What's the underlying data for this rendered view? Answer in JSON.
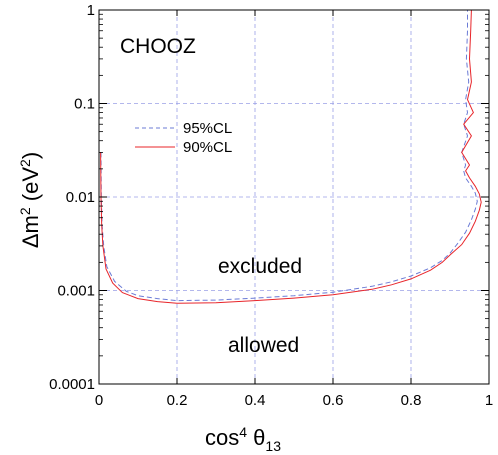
{
  "chart_data": {
    "type": "line",
    "title": "",
    "xlabel": "cos⁴ θ₁₃",
    "ylabel": "Δm² (eV²)",
    "xlim": [
      0,
      1
    ],
    "ylim": [
      0.0001,
      1
    ],
    "yscale": "log",
    "grid": true,
    "xticks": [
      "0",
      "0.2",
      "0.4",
      "0.6",
      "0.8",
      "1"
    ],
    "yticks": [
      "0.0001",
      "0.001",
      "0.01",
      "0.1",
      "1"
    ],
    "legend_position": "upper-left",
    "annotations": {
      "experiment": "CHOOZ",
      "excluded": "excluded",
      "allowed": "allowed"
    },
    "series": [
      {
        "name": "95%CL",
        "color": "#6b7bd6",
        "style": "dashed",
        "x": [
          0.005,
          0.006,
          0.008,
          0.012,
          0.02,
          0.04,
          0.07,
          0.1,
          0.15,
          0.2,
          0.3,
          0.4,
          0.5,
          0.6,
          0.7,
          0.75,
          0.8,
          0.85,
          0.88,
          0.9,
          0.92,
          0.94,
          0.955,
          0.965,
          0.97,
          0.965,
          0.955,
          0.94,
          0.935,
          0.94,
          0.93,
          0.945,
          0.935,
          0.945,
          0.94,
          0.948,
          0.942,
          0.945,
          0.945
        ],
        "y": [
          0.03,
          0.01,
          0.005,
          0.003,
          0.0018,
          0.00125,
          0.00098,
          0.00088,
          0.00082,
          0.00078,
          0.00079,
          0.00083,
          0.00088,
          0.00096,
          0.00111,
          0.00124,
          0.00143,
          0.00175,
          0.0021,
          0.0025,
          0.0032,
          0.0042,
          0.0057,
          0.0074,
          0.009,
          0.011,
          0.013,
          0.016,
          0.019,
          0.022,
          0.03,
          0.045,
          0.06,
          0.08,
          0.11,
          0.17,
          0.3,
          0.6,
          1.0
        ]
      },
      {
        "name": "90%CL",
        "color": "#e8252a",
        "style": "solid",
        "x": [
          0.004,
          0.005,
          0.007,
          0.01,
          0.018,
          0.035,
          0.06,
          0.1,
          0.15,
          0.2,
          0.3,
          0.4,
          0.5,
          0.6,
          0.7,
          0.75,
          0.8,
          0.85,
          0.88,
          0.9,
          0.93,
          0.95,
          0.965,
          0.975,
          0.98,
          0.975,
          0.965,
          0.95,
          0.94,
          0.95,
          0.93,
          0.955,
          0.935,
          0.96,
          0.945,
          0.955,
          0.95,
          0.953,
          0.955
        ],
        "y": [
          0.03,
          0.01,
          0.005,
          0.003,
          0.0017,
          0.0012,
          0.00095,
          0.00082,
          0.00076,
          0.00073,
          0.00074,
          0.00078,
          0.00083,
          0.0009,
          0.00103,
          0.00115,
          0.00133,
          0.00165,
          0.002,
          0.0024,
          0.0031,
          0.0041,
          0.0055,
          0.0072,
          0.0088,
          0.0108,
          0.013,
          0.016,
          0.019,
          0.022,
          0.03,
          0.045,
          0.06,
          0.08,
          0.11,
          0.17,
          0.3,
          0.6,
          1.0
        ]
      }
    ]
  }
}
